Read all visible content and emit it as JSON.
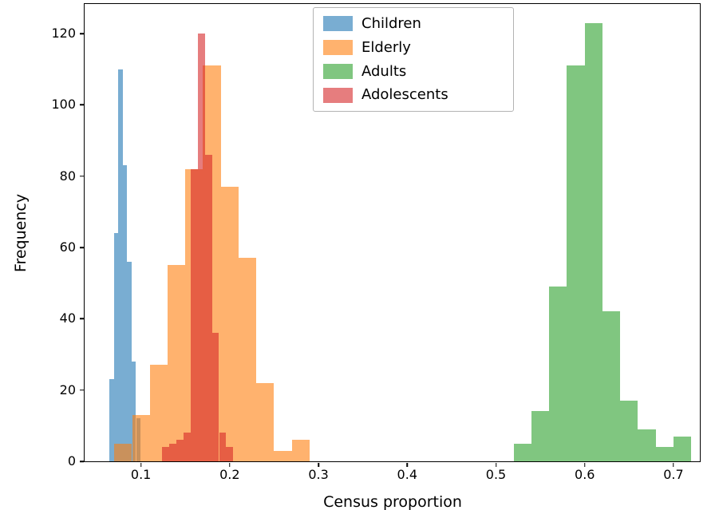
{
  "figure": {
    "background": "#ffffff"
  },
  "chart_data": {
    "type": "histogram",
    "title": "",
    "xlabel": "Census proportion",
    "ylabel": "Frequency",
    "xlim": [
      0.0365,
      0.7297
    ],
    "ylim": [
      0,
      128.3
    ],
    "grid": false,
    "legend_position": "upper center-left",
    "xticks": [
      {
        "value": 0.1,
        "label": "0.1"
      },
      {
        "value": 0.2,
        "label": "0.2"
      },
      {
        "value": 0.3,
        "label": "0.3"
      },
      {
        "value": 0.4,
        "label": "0.4"
      },
      {
        "value": 0.5,
        "label": "0.5"
      },
      {
        "value": 0.6,
        "label": "0.6"
      },
      {
        "value": 0.7,
        "label": "0.7"
      }
    ],
    "yticks": [
      {
        "value": 0,
        "label": "0"
      },
      {
        "value": 20,
        "label": "20"
      },
      {
        "value": 40,
        "label": "40"
      },
      {
        "value": 60,
        "label": "60"
      },
      {
        "value": 80,
        "label": "80"
      },
      {
        "value": 100,
        "label": "100"
      },
      {
        "value": 120,
        "label": "120"
      }
    ],
    "series": [
      {
        "name": "Children",
        "color": "#1f77b4",
        "fill": "rgba(31,119,180,0.6)",
        "bins": [
          [
            0.0645,
            0.0695,
            23
          ],
          [
            0.0695,
            0.0745,
            64
          ],
          [
            0.0745,
            0.0795,
            110
          ],
          [
            0.0795,
            0.0845,
            83
          ],
          [
            0.0845,
            0.0895,
            56
          ],
          [
            0.0895,
            0.0945,
            28
          ],
          [
            0.0945,
            0.0995,
            12
          ]
        ]
      },
      {
        "name": "Elderly",
        "color": "#ff7f0e",
        "fill": "rgba(255,127,14,0.6)",
        "bins": [
          [
            0.07,
            0.09,
            5
          ],
          [
            0.09,
            0.11,
            13
          ],
          [
            0.11,
            0.13,
            27
          ],
          [
            0.13,
            0.15,
            55
          ],
          [
            0.15,
            0.17,
            82
          ],
          [
            0.17,
            0.19,
            111
          ],
          [
            0.19,
            0.21,
            77
          ],
          [
            0.21,
            0.23,
            57
          ],
          [
            0.23,
            0.25,
            22
          ],
          [
            0.25,
            0.27,
            3
          ],
          [
            0.27,
            0.29,
            6
          ]
        ]
      },
      {
        "name": "Adults",
        "color": "#2ca02c",
        "fill": "rgba(44,160,44,0.6)",
        "bins": [
          [
            0.52,
            0.54,
            5
          ],
          [
            0.54,
            0.56,
            14
          ],
          [
            0.56,
            0.58,
            49
          ],
          [
            0.58,
            0.6,
            111
          ],
          [
            0.6,
            0.62,
            123
          ],
          [
            0.62,
            0.64,
            42
          ],
          [
            0.64,
            0.66,
            17
          ],
          [
            0.66,
            0.68,
            9
          ],
          [
            0.68,
            0.7,
            4
          ],
          [
            0.7,
            0.72,
            7
          ]
        ]
      },
      {
        "name": "Adolescents",
        "color": "#d62728",
        "fill": "rgba(214,39,40,0.6)",
        "bins": [
          [
            0.124,
            0.132,
            4
          ],
          [
            0.132,
            0.14,
            5
          ],
          [
            0.14,
            0.148,
            6
          ],
          [
            0.148,
            0.156,
            8
          ],
          [
            0.156,
            0.164,
            82
          ],
          [
            0.164,
            0.172,
            120
          ],
          [
            0.172,
            0.18,
            86
          ],
          [
            0.18,
            0.188,
            36
          ],
          [
            0.188,
            0.196,
            8
          ],
          [
            0.196,
            0.204,
            4
          ]
        ]
      }
    ]
  }
}
